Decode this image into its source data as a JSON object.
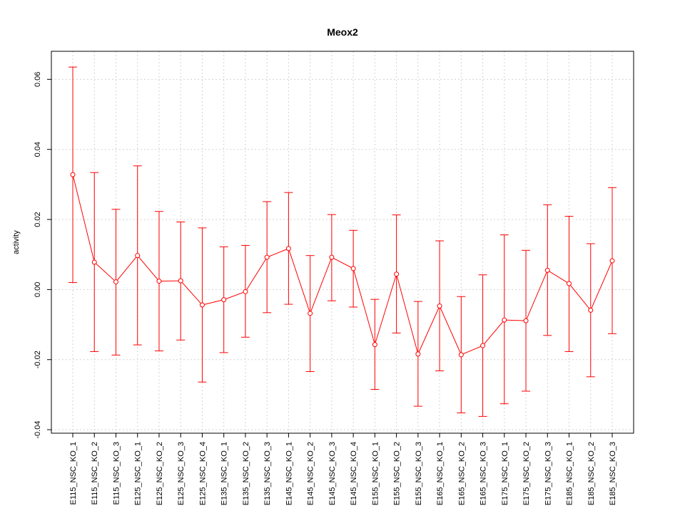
{
  "chart_data": {
    "type": "line",
    "title": "Meox2",
    "xlabel": "",
    "ylabel": "activity",
    "ylim": [
      -0.041,
      0.068
    ],
    "yticks": [
      -0.04,
      -0.02,
      0.0,
      0.02,
      0.04,
      0.06
    ],
    "ytick_labels": [
      "-0.04",
      "-0.02",
      "0.00",
      "0.02",
      "0.04",
      "0.06"
    ],
    "grid": true,
    "color": "#ff0000",
    "categories": [
      "E115_NSC_KO_1",
      "E115_NSC_KO_2",
      "E115_NSC_KO_3",
      "E125_NSC_KO_1",
      "E125_NSC_KO_2",
      "E125_NSC_KO_3",
      "E125_NSC_KO_4",
      "E135_NSC_KO_1",
      "E135_NSC_KO_2",
      "E135_NSC_KO_3",
      "E145_NSC_KO_1",
      "E145_NSC_KO_2",
      "E145_NSC_KO_3",
      "E145_NSC_KO_4",
      "E155_NSC_KO_1",
      "E155_NSC_KO_2",
      "E155_NSC_KO_3",
      "E165_NSC_KO_1",
      "E165_NSC_KO_2",
      "E165_NSC_KO_3",
      "E175_NSC_KO_1",
      "E175_NSC_KO_2",
      "E175_NSC_KO_3",
      "E185_NSC_KO_1",
      "E185_NSC_KO_2",
      "E185_NSC_KO_3"
    ],
    "values": [
      0.0328,
      0.0078,
      0.0022,
      0.0097,
      0.0024,
      0.0025,
      -0.0044,
      -0.0029,
      -0.0006,
      0.0092,
      0.0117,
      -0.0068,
      0.0092,
      0.006,
      -0.0157,
      0.0044,
      -0.0184,
      -0.0047,
      -0.0186,
      -0.016,
      -0.0087,
      -0.0089,
      0.0055,
      0.0017,
      -0.0059,
      0.0082
    ],
    "upper": [
      0.0635,
      0.0334,
      0.0229,
      0.0353,
      0.0223,
      0.0193,
      0.0176,
      0.0122,
      0.0126,
      0.0251,
      0.0277,
      0.0097,
      0.0214,
      0.0169,
      -0.0028,
      0.0213,
      -0.0034,
      0.0139,
      -0.002,
      0.0042,
      0.0156,
      0.0112,
      0.0242,
      0.0209,
      0.0131,
      0.0291
    ],
    "lower": [
      0.002,
      -0.0177,
      -0.0187,
      -0.0158,
      -0.0175,
      -0.0144,
      -0.0264,
      -0.018,
      -0.0136,
      -0.0066,
      -0.0042,
      -0.0234,
      -0.0032,
      -0.005,
      -0.0285,
      -0.0124,
      -0.0333,
      -0.0232,
      -0.0352,
      -0.0362,
      -0.0326,
      -0.029,
      -0.0131,
      -0.0177,
      -0.0249,
      -0.0126
    ]
  }
}
